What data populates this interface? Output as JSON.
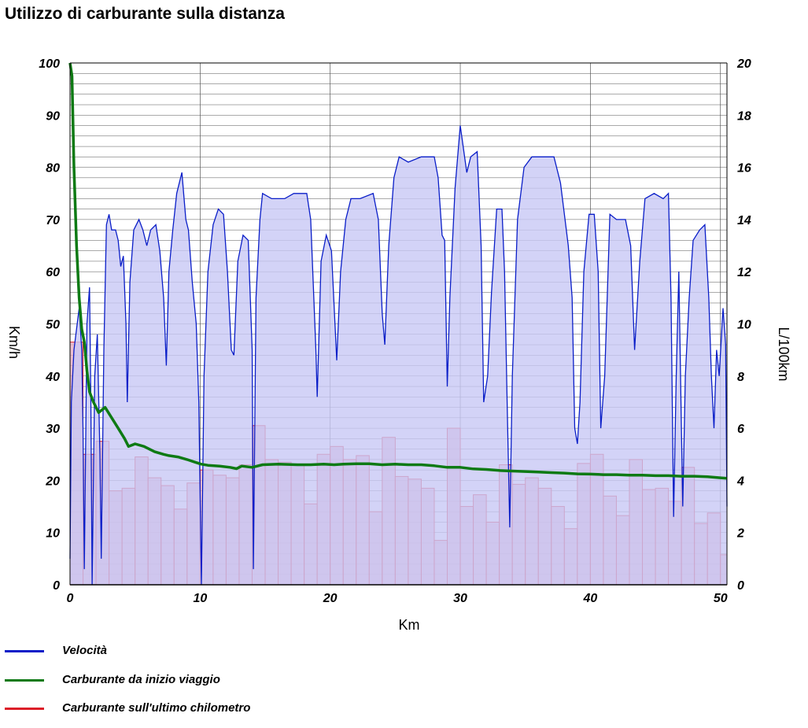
{
  "chart_data": {
    "type": "line",
    "title": "Utilizzo di carburante sulla distanza",
    "xlabel": "Km",
    "ylabel_left": "Km/h",
    "ylabel_right": "L/100km",
    "x_range": [
      0,
      50.5
    ],
    "y_left_range": [
      0,
      100
    ],
    "y_right_range": [
      0,
      20
    ],
    "x_ticks": [
      0,
      10,
      20,
      30,
      40,
      50
    ],
    "y_left_ticks": [
      0,
      10,
      20,
      30,
      40,
      50,
      60,
      70,
      80,
      90,
      100
    ],
    "y_right_ticks": [
      0,
      2,
      4,
      6,
      8,
      10,
      12,
      14,
      16,
      18,
      20
    ],
    "grid": true,
    "legend_position": "bottom-left",
    "series": [
      {
        "name": "Velocità",
        "axis": "left",
        "style": "filled-area",
        "color": "#0a1ec8",
        "fill": "#c8c8f5",
        "points": [
          [
            0,
            5
          ],
          [
            0.1,
            35
          ],
          [
            0.3,
            45
          ],
          [
            0.5,
            49
          ],
          [
            0.7,
            53
          ],
          [
            0.9,
            45
          ],
          [
            1.0,
            30
          ],
          [
            1.1,
            3
          ],
          [
            1.3,
            50
          ],
          [
            1.5,
            57
          ],
          [
            1.6,
            35
          ],
          [
            1.7,
            0
          ],
          [
            1.9,
            40
          ],
          [
            2.1,
            48
          ],
          [
            2.3,
            25
          ],
          [
            2.4,
            5
          ],
          [
            2.6,
            45
          ],
          [
            2.8,
            69
          ],
          [
            3.0,
            71
          ],
          [
            3.2,
            68
          ],
          [
            3.5,
            68
          ],
          [
            3.7,
            66
          ],
          [
            3.9,
            61
          ],
          [
            4.1,
            63
          ],
          [
            4.3,
            50
          ],
          [
            4.4,
            35
          ],
          [
            4.6,
            58
          ],
          [
            4.9,
            68
          ],
          [
            5.3,
            70
          ],
          [
            5.6,
            68
          ],
          [
            5.9,
            65
          ],
          [
            6.2,
            68
          ],
          [
            6.6,
            69
          ],
          [
            6.9,
            64
          ],
          [
            7.2,
            55
          ],
          [
            7.4,
            42
          ],
          [
            7.6,
            60
          ],
          [
            7.9,
            68
          ],
          [
            8.2,
            75
          ],
          [
            8.6,
            79
          ],
          [
            8.9,
            70
          ],
          [
            9.1,
            68
          ],
          [
            9.4,
            58
          ],
          [
            9.7,
            50
          ],
          [
            9.9,
            35
          ],
          [
            10.1,
            0
          ],
          [
            10.3,
            40
          ],
          [
            10.6,
            60
          ],
          [
            11.0,
            69
          ],
          [
            11.4,
            72
          ],
          [
            11.8,
            71
          ],
          [
            12.1,
            60
          ],
          [
            12.4,
            45
          ],
          [
            12.6,
            44
          ],
          [
            12.9,
            62
          ],
          [
            13.3,
            67
          ],
          [
            13.7,
            66
          ],
          [
            14.0,
            45
          ],
          [
            14.1,
            3
          ],
          [
            14.3,
            55
          ],
          [
            14.6,
            70
          ],
          [
            14.8,
            75
          ],
          [
            15.5,
            74
          ],
          [
            16.5,
            74
          ],
          [
            17.2,
            75
          ],
          [
            18.2,
            75
          ],
          [
            18.5,
            70
          ],
          [
            18.9,
            45
          ],
          [
            19.0,
            36
          ],
          [
            19.3,
            62
          ],
          [
            19.7,
            67
          ],
          [
            20.1,
            64
          ],
          [
            20.5,
            43
          ],
          [
            20.8,
            60
          ],
          [
            21.2,
            70
          ],
          [
            21.6,
            74
          ],
          [
            22.3,
            74
          ],
          [
            23.3,
            75
          ],
          [
            23.7,
            70
          ],
          [
            24.0,
            52
          ],
          [
            24.2,
            46
          ],
          [
            24.5,
            65
          ],
          [
            24.9,
            78
          ],
          [
            25.3,
            82
          ],
          [
            26.0,
            81
          ],
          [
            27.0,
            82
          ],
          [
            28.0,
            82
          ],
          [
            28.3,
            78
          ],
          [
            28.6,
            67
          ],
          [
            28.8,
            66
          ],
          [
            29.0,
            38
          ],
          [
            29.2,
            55
          ],
          [
            29.6,
            76
          ],
          [
            30.0,
            88
          ],
          [
            30.5,
            79
          ],
          [
            30.8,
            82
          ],
          [
            31.3,
            83
          ],
          [
            31.6,
            65
          ],
          [
            31.8,
            35
          ],
          [
            32.1,
            40
          ],
          [
            32.4,
            56
          ],
          [
            32.8,
            72
          ],
          [
            33.2,
            72
          ],
          [
            33.4,
            60
          ],
          [
            33.6,
            35
          ],
          [
            33.8,
            11
          ],
          [
            34.0,
            40
          ],
          [
            34.4,
            70
          ],
          [
            34.9,
            80
          ],
          [
            35.5,
            82
          ],
          [
            36.5,
            82
          ],
          [
            37.2,
            82
          ],
          [
            37.7,
            77
          ],
          [
            38.3,
            65
          ],
          [
            38.6,
            55
          ],
          [
            38.8,
            30
          ],
          [
            39.0,
            27
          ],
          [
            39.2,
            35
          ],
          [
            39.5,
            60
          ],
          [
            39.9,
            71
          ],
          [
            40.3,
            71
          ],
          [
            40.6,
            60
          ],
          [
            40.8,
            30
          ],
          [
            41.1,
            40
          ],
          [
            41.5,
            71
          ],
          [
            42.0,
            70
          ],
          [
            42.7,
            70
          ],
          [
            43.1,
            65
          ],
          [
            43.4,
            45
          ],
          [
            43.8,
            62
          ],
          [
            44.2,
            74
          ],
          [
            44.9,
            75
          ],
          [
            45.6,
            74
          ],
          [
            46.0,
            75
          ],
          [
            46.2,
            55
          ],
          [
            46.4,
            13
          ],
          [
            46.6,
            40
          ],
          [
            46.8,
            60
          ],
          [
            47.0,
            30
          ],
          [
            47.1,
            15
          ],
          [
            47.3,
            40
          ],
          [
            47.6,
            55
          ],
          [
            47.9,
            66
          ],
          [
            48.4,
            68
          ],
          [
            48.8,
            69
          ],
          [
            49.1,
            55
          ],
          [
            49.3,
            40
          ],
          [
            49.5,
            30
          ],
          [
            49.7,
            45
          ],
          [
            49.9,
            40
          ],
          [
            50.2,
            53
          ],
          [
            50.4,
            46
          ],
          [
            50.5,
            15
          ]
        ]
      },
      {
        "name": "Carburante da inizio viaggio",
        "axis": "right",
        "style": "line",
        "color": "#0e7a14",
        "points": [
          [
            0,
            20
          ],
          [
            0.15,
            19.5
          ],
          [
            0.3,
            16
          ],
          [
            0.5,
            13
          ],
          [
            0.7,
            11
          ],
          [
            0.9,
            9.8
          ],
          [
            1.1,
            9.3
          ],
          [
            1.3,
            8.2
          ],
          [
            1.5,
            7.4
          ],
          [
            1.8,
            7.0
          ],
          [
            2.2,
            6.6
          ],
          [
            2.7,
            6.8
          ],
          [
            3.2,
            6.4
          ],
          [
            3.7,
            6.0
          ],
          [
            4.2,
            5.6
          ],
          [
            4.5,
            5.3
          ],
          [
            5.0,
            5.4
          ],
          [
            5.7,
            5.3
          ],
          [
            6.5,
            5.1
          ],
          [
            7.2,
            5.0
          ],
          [
            7.6,
            4.95
          ],
          [
            8.3,
            4.9
          ],
          [
            9.0,
            4.8
          ],
          [
            9.6,
            4.7
          ],
          [
            10.1,
            4.62
          ],
          [
            10.6,
            4.58
          ],
          [
            11.5,
            4.55
          ],
          [
            12.3,
            4.5
          ],
          [
            12.8,
            4.45
          ],
          [
            13.2,
            4.55
          ],
          [
            14.0,
            4.5
          ],
          [
            14.8,
            4.6
          ],
          [
            16.0,
            4.62
          ],
          [
            17.5,
            4.6
          ],
          [
            18.5,
            4.6
          ],
          [
            19.5,
            4.62
          ],
          [
            20.3,
            4.6
          ],
          [
            21.0,
            4.62
          ],
          [
            22.0,
            4.64
          ],
          [
            23.0,
            4.64
          ],
          [
            24.0,
            4.6
          ],
          [
            25.0,
            4.62
          ],
          [
            26.0,
            4.6
          ],
          [
            27.0,
            4.6
          ],
          [
            28.0,
            4.56
          ],
          [
            29.0,
            4.5
          ],
          [
            30.0,
            4.5
          ],
          [
            31.0,
            4.44
          ],
          [
            32.0,
            4.42
          ],
          [
            33.0,
            4.38
          ],
          [
            34.0,
            4.36
          ],
          [
            35.0,
            4.34
          ],
          [
            36.0,
            4.32
          ],
          [
            37.0,
            4.3
          ],
          [
            38.0,
            4.28
          ],
          [
            39.0,
            4.25
          ],
          [
            40.0,
            4.24
          ],
          [
            41.0,
            4.22
          ],
          [
            42.0,
            4.22
          ],
          [
            43.0,
            4.2
          ],
          [
            44.0,
            4.2
          ],
          [
            45.0,
            4.18
          ],
          [
            46.0,
            4.18
          ],
          [
            47.0,
            4.16
          ],
          [
            48.0,
            4.16
          ],
          [
            49.0,
            4.14
          ],
          [
            50.0,
            4.1
          ],
          [
            50.5,
            4.08
          ]
        ]
      },
      {
        "name": "Carburante sull'ultimo chilometro",
        "axis": "right",
        "style": "bar",
        "color": "#dc1e28",
        "fill": "#e6a8c0",
        "bar_width_km": 1,
        "x_start": 0,
        "values": [
          9.3,
          5.0,
          5.5,
          3.6,
          3.7,
          4.9,
          4.1,
          3.8,
          2.9,
          3.9,
          4.4,
          4.2,
          4.1,
          4.6,
          6.1,
          4.8,
          4.7,
          4.6,
          3.1,
          5.0,
          5.3,
          4.8,
          4.95,
          2.8,
          5.65,
          4.15,
          4.05,
          3.7,
          1.7,
          6.0,
          3.0,
          3.45,
          2.4,
          4.6,
          3.85,
          4.1,
          3.7,
          3.0,
          2.15,
          4.65,
          5.0,
          3.4,
          2.65,
          4.8,
          3.65,
          3.7,
          3.2,
          4.5,
          2.35,
          2.75,
          1.15
        ]
      }
    ]
  }
}
